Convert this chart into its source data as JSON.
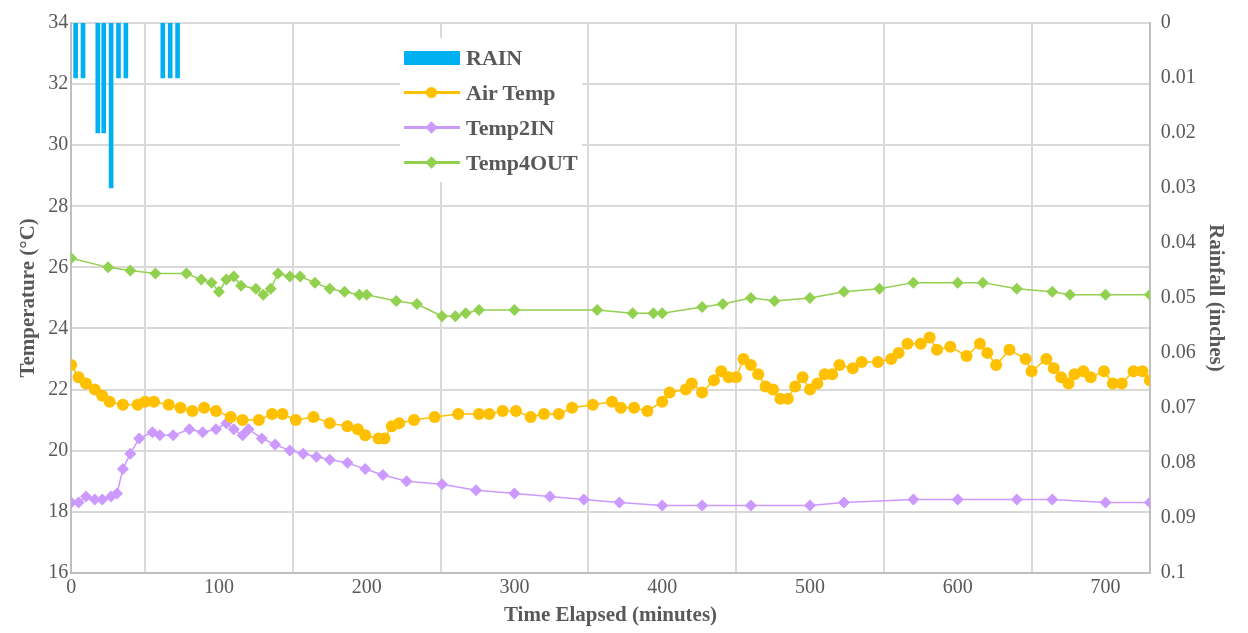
{
  "chart_data": {
    "type": "line",
    "xlabel": "Time Elapsed (minutes)",
    "ylabel": "Temperature (°C)",
    "y2label": "Rainfall (inches)",
    "xlim": [
      0,
      730
    ],
    "xticks": [
      0,
      100,
      200,
      300,
      400,
      500,
      600,
      700
    ],
    "ylim": [
      16,
      34
    ],
    "yticks": [
      16,
      18,
      20,
      22,
      24,
      26,
      28,
      30,
      32,
      34
    ],
    "y2lim": [
      0.1,
      0
    ],
    "y2ticks": [
      0,
      0.01,
      0.02,
      0.03,
      0.04,
      0.05,
      0.06,
      0.07,
      0.08,
      0.09,
      0.1
    ],
    "grid": true,
    "legend": "top",
    "series": [
      {
        "name": "RAIN",
        "type": "bar",
        "axis": "y2",
        "color": "#00b0f0",
        "x": [
          3,
          8,
          18,
          22,
          27,
          32,
          37,
          62,
          67,
          72
        ],
        "values": [
          0.01,
          0.01,
          0.02,
          0.02,
          0.03,
          0.01,
          0.01,
          0.01,
          0.01,
          0.01
        ]
      },
      {
        "name": "Air Temp",
        "marker": "circle",
        "color": "#ffc000",
        "x": [
          0,
          5,
          10,
          16,
          21,
          26,
          35,
          45,
          50,
          56,
          66,
          74,
          82,
          90,
          98,
          108,
          116,
          127,
          136,
          143,
          152,
          164,
          175,
          187,
          194,
          199,
          208,
          212,
          217,
          222,
          232,
          246,
          262,
          276,
          283,
          292,
          301,
          311,
          320,
          330,
          339,
          353,
          366,
          372,
          381,
          390,
          400,
          405,
          416,
          420,
          427,
          435,
          440,
          445,
          450,
          455,
          460,
          465,
          470,
          475,
          480,
          485,
          490,
          495,
          500,
          505,
          510,
          515,
          520,
          529,
          535,
          546,
          555,
          560,
          566,
          575,
          581,
          586,
          595,
          606,
          615,
          620,
          626,
          635,
          646,
          650,
          660,
          665,
          670,
          675,
          679,
          685,
          690,
          699,
          705,
          711,
          719,
          725,
          730
        ],
        "values": [
          22.8,
          22.4,
          22.2,
          22,
          21.8,
          21.6,
          21.5,
          21.5,
          21.6,
          21.6,
          21.5,
          21.4,
          21.3,
          21.4,
          21.3,
          21.1,
          21,
          21,
          21.2,
          21.2,
          21,
          21.1,
          20.9,
          20.8,
          20.7,
          20.5,
          20.4,
          20.4,
          20.8,
          20.9,
          21,
          21.1,
          21.2,
          21.2,
          21.2,
          21.3,
          21.3,
          21.1,
          21.2,
          21.2,
          21.4,
          21.5,
          21.6,
          21.4,
          21.4,
          21.3,
          21.6,
          21.9,
          22,
          22.2,
          21.9,
          22.3,
          22.6,
          22.4,
          22.4,
          23,
          22.8,
          22.5,
          22.1,
          22,
          21.7,
          21.7,
          22.1,
          22.4,
          22,
          22.2,
          22.5,
          22.5,
          22.8,
          22.7,
          22.9,
          22.9,
          23,
          23.2,
          23.5,
          23.5,
          23.7,
          23.3,
          23.4,
          23.1,
          23.5,
          23.2,
          22.8,
          23.3,
          23,
          22.6,
          23,
          22.7,
          22.4,
          22.2,
          22.5,
          22.6,
          22.4,
          22.6,
          22.2,
          22.2,
          22.6,
          22.6,
          22.3
        ]
      },
      {
        "name": "Temp2IN",
        "marker": "diamond",
        "color": "#cc99ff",
        "x": [
          0,
          5,
          10,
          16,
          21,
          27,
          31,
          35,
          40,
          46,
          55,
          60,
          69,
          80,
          89,
          98,
          105,
          110,
          116,
          120,
          129,
          138,
          148,
          157,
          166,
          175,
          187,
          199,
          211,
          227,
          251,
          274,
          300,
          324,
          347,
          371,
          400,
          427,
          460,
          500,
          523,
          570,
          600,
          640,
          664,
          700,
          730
        ],
        "values": [
          18.3,
          18.3,
          18.5,
          18.4,
          18.4,
          18.5,
          18.6,
          19.4,
          19.9,
          20.4,
          20.6,
          20.5,
          20.5,
          20.7,
          20.6,
          20.7,
          20.9,
          20.7,
          20.5,
          20.7,
          20.4,
          20.2,
          20,
          19.9,
          19.8,
          19.7,
          19.6,
          19.4,
          19.2,
          19,
          18.9,
          18.7,
          18.6,
          18.5,
          18.4,
          18.3,
          18.2,
          18.2,
          18.2,
          18.2,
          18.3,
          18.4,
          18.4,
          18.4,
          18.4,
          18.3,
          18.3
        ]
      },
      {
        "name": "Temp4OUT",
        "marker": "diamond",
        "color": "#92d050",
        "x": [
          0,
          25,
          40,
          57,
          78,
          88,
          95,
          100,
          105,
          110,
          115,
          125,
          130,
          135,
          140,
          148,
          155,
          165,
          175,
          185,
          195,
          200,
          220,
          234,
          251,
          260,
          267,
          276,
          300,
          356,
          380,
          394,
          400,
          427,
          441,
          460,
          476,
          500,
          523,
          547,
          570,
          600,
          617,
          640,
          664,
          676,
          700,
          730
        ],
        "values": [
          26.3,
          26,
          25.9,
          25.8,
          25.8,
          25.6,
          25.5,
          25.2,
          25.6,
          25.7,
          25.4,
          25.3,
          25.1,
          25.3,
          25.8,
          25.7,
          25.7,
          25.5,
          25.3,
          25.2,
          25.1,
          25.1,
          24.9,
          24.8,
          24.4,
          24.4,
          24.5,
          24.6,
          24.6,
          24.6,
          24.5,
          24.5,
          24.5,
          24.7,
          24.8,
          25,
          24.9,
          25,
          25.2,
          25.3,
          25.5,
          25.5,
          25.5,
          25.3,
          25.2,
          25.1,
          25.1,
          25.1
        ]
      }
    ]
  }
}
